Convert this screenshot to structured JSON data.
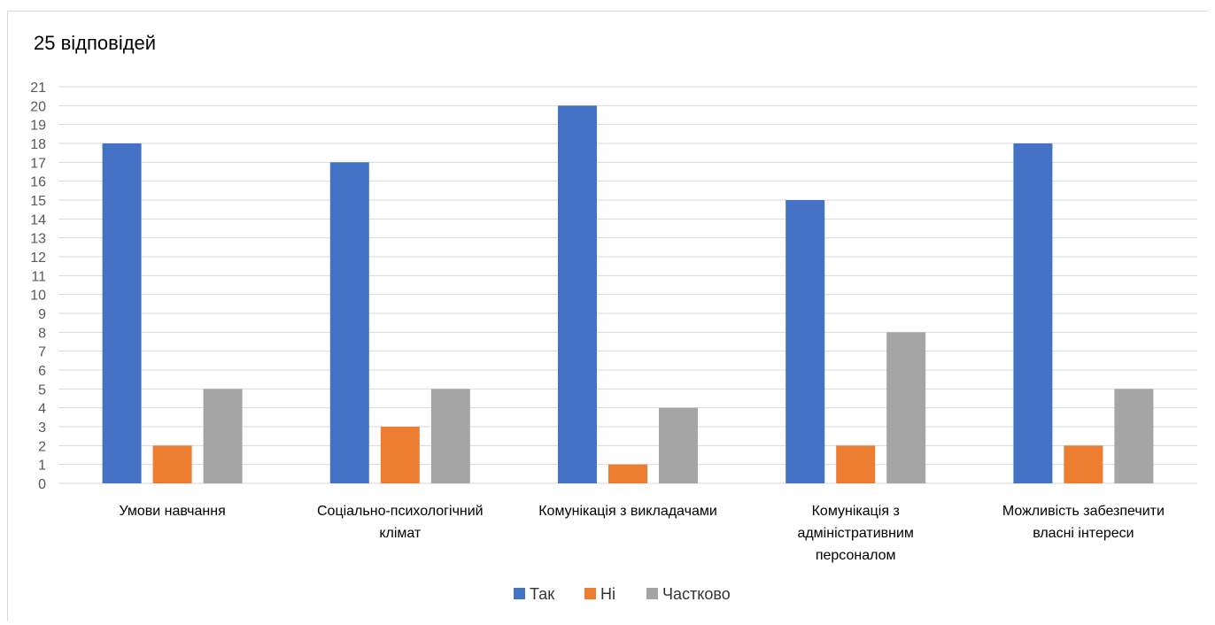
{
  "chart_data": {
    "type": "bar",
    "title": "25 відповідей",
    "categories": [
      [
        "Умови навчання"
      ],
      [
        "Соціально-психологічний",
        "клімат"
      ],
      [
        "Комунікація з викладачами"
      ],
      [
        "Комунікація з",
        "адміністративним",
        "персоналом"
      ],
      [
        "Можливість забезпечити",
        "власні інтереси"
      ]
    ],
    "series": [
      {
        "name": "Так",
        "color": "#4472C4",
        "values": [
          18,
          17,
          20,
          15,
          18
        ]
      },
      {
        "name": "Ні",
        "color": "#ED7D31",
        "values": [
          2,
          3,
          1,
          2,
          2
        ]
      },
      {
        "name": "Частково",
        "color": "#A5A5A5",
        "values": [
          5,
          5,
          4,
          8,
          5
        ]
      }
    ],
    "ylim": [
      0,
      21
    ],
    "yticks": [
      "0",
      "1",
      "2",
      "3",
      "4",
      "5",
      "6",
      "7",
      "8",
      "9",
      "10",
      "11",
      "12",
      "13",
      "14",
      "15",
      "16",
      "17",
      "18",
      "19",
      "20",
      "21"
    ],
    "grid": true,
    "legend": "bottom"
  }
}
